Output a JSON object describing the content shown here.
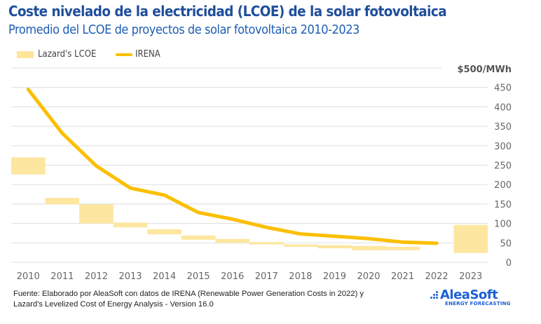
{
  "header": {
    "title": "Coste nivelado de la electricidad (LCOE) de la solar fotovoltaica",
    "subtitle": "Promedio del LCOE de proyectos de solar fotovoltaica 2010-2023"
  },
  "legend": {
    "items": [
      {
        "label": "Lazard's LCOE",
        "icon": "range-box-swatch"
      },
      {
        "label": "IRENA",
        "icon": "line-swatch"
      }
    ]
  },
  "colors": {
    "title": "#1f4e9c",
    "subtitle": "#1f5fb4",
    "lazard": "#fde59a",
    "irena": "#fbbf00",
    "grid": "#e3e3e3",
    "brand": "#1d5fd6"
  },
  "chart_data": {
    "type": "line",
    "title": "Coste nivelado de la electricidad (LCOE) de la solar fotovoltaica",
    "subtitle": "Promedio del LCOE de proyectos de solar fotovoltaica 2010-2023",
    "xlabel": "",
    "ylabel": "$/MWh",
    "y_unit_label": "$500/MWh",
    "ylim": [
      0,
      500
    ],
    "yticks": [
      0,
      50,
      100,
      150,
      200,
      250,
      300,
      350,
      400,
      450
    ],
    "y_axis_position": "right",
    "grid": true,
    "legend_position": "top-left",
    "categories": [
      "2010",
      "2011",
      "2012",
      "2013",
      "2014",
      "2015",
      "2016",
      "2017",
      "2018",
      "2019",
      "2020",
      "2021",
      "2022",
      "2023"
    ],
    "series": [
      {
        "name": "Lazard's LCOE",
        "kind": "floating-range",
        "low": [
          226,
          149,
          100,
          90,
          72,
          58,
          50,
          46,
          40,
          36,
          31,
          31,
          null,
          24
        ],
        "high": [
          270,
          166,
          149,
          102,
          85,
          69,
          60,
          52,
          46,
          44,
          42,
          40,
          null,
          96
        ]
      },
      {
        "name": "IRENA",
        "kind": "line",
        "values": [
          445,
          332,
          248,
          191,
          173,
          128,
          111,
          90,
          73,
          67,
          61,
          52,
          49,
          null
        ]
      }
    ]
  },
  "footer": {
    "source_line1": "Fuente: Elaborado por AleaSoft con datos de IRENA (Renewable Power Generation Costs in 2022) y",
    "source_line2": "Lazard's Levelized Cost of Energy Analysis - Version 16.0",
    "logo_name": "AleaSoft",
    "logo_tagline": "ENERGY FORECASTING"
  }
}
